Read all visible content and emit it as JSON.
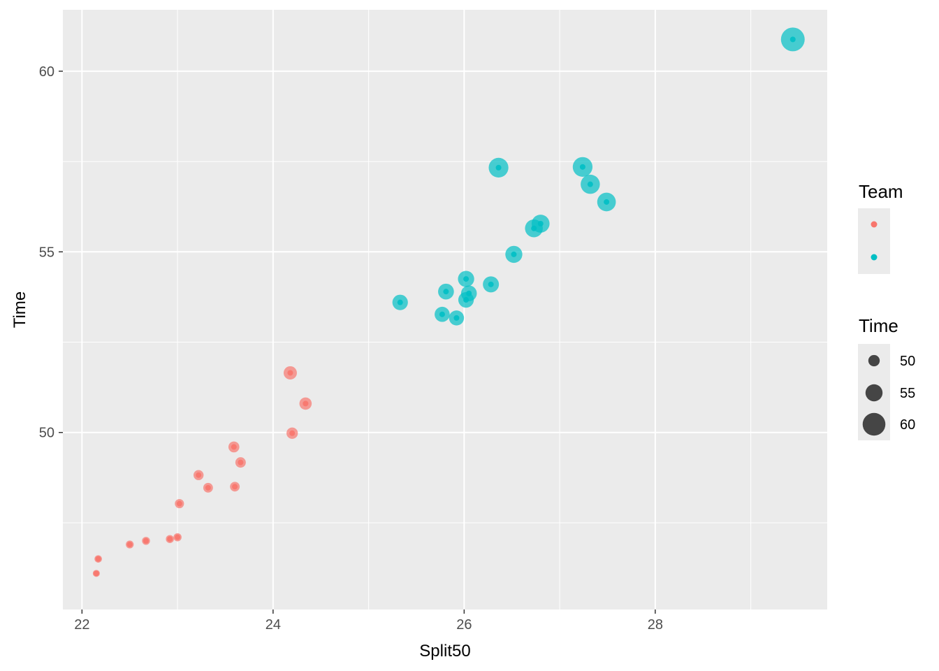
{
  "chart_data": {
    "type": "scatter",
    "xlabel": "Split50",
    "ylabel": "Time",
    "xlim": [
      21.8,
      29.8
    ],
    "ylim": [
      45.1,
      61.7
    ],
    "x_ticks": [
      22,
      24,
      26,
      28
    ],
    "y_ticks": [
      50,
      55,
      60
    ],
    "x_tick_labels": [
      "22",
      "24",
      "26",
      "28"
    ],
    "y_tick_labels": [
      "50",
      "55",
      "60"
    ],
    "grid": true,
    "legend_position": "right",
    "series": [
      {
        "color": "#F8766D",
        "points": [
          {
            "x": 22.15,
            "y": 46.1
          },
          {
            "x": 22.17,
            "y": 46.5
          },
          {
            "x": 22.5,
            "y": 46.9
          },
          {
            "x": 22.67,
            "y": 47.0
          },
          {
            "x": 22.92,
            "y": 47.05
          },
          {
            "x": 23.0,
            "y": 47.1
          },
          {
            "x": 23.02,
            "y": 48.03
          },
          {
            "x": 23.22,
            "y": 48.82
          },
          {
            "x": 23.32,
            "y": 48.47
          },
          {
            "x": 23.6,
            "y": 48.5
          },
          {
            "x": 23.59,
            "y": 49.6
          },
          {
            "x": 23.66,
            "y": 49.17
          },
          {
            "x": 24.2,
            "y": 49.98
          },
          {
            "x": 24.18,
            "y": 51.65
          },
          {
            "x": 24.34,
            "y": 50.8
          }
        ]
      },
      {
        "color": "#00BFC4",
        "points": [
          {
            "x": 25.33,
            "y": 53.6
          },
          {
            "x": 25.77,
            "y": 53.27
          },
          {
            "x": 25.81,
            "y": 53.9
          },
          {
            "x": 25.92,
            "y": 53.17
          },
          {
            "x": 26.02,
            "y": 54.25
          },
          {
            "x": 26.02,
            "y": 53.67
          },
          {
            "x": 26.05,
            "y": 53.85
          },
          {
            "x": 26.28,
            "y": 54.1
          },
          {
            "x": 26.52,
            "y": 54.93
          },
          {
            "x": 26.36,
            "y": 57.33
          },
          {
            "x": 26.73,
            "y": 55.65
          },
          {
            "x": 26.8,
            "y": 55.78
          },
          {
            "x": 27.24,
            "y": 57.35
          },
          {
            "x": 27.32,
            "y": 56.87
          },
          {
            "x": 27.49,
            "y": 56.38
          },
          {
            "x": 29.44,
            "y": 60.88
          }
        ]
      }
    ],
    "legends": [
      {
        "title": "Team",
        "keys": [
          {
            "color": "#F8766D",
            "label": ""
          },
          {
            "color": "#00BFC4",
            "label": ""
          }
        ]
      },
      {
        "title": "Time",
        "keys": [
          {
            "value": 50,
            "label": "50"
          },
          {
            "value": 55,
            "label": "55"
          },
          {
            "value": 60,
            "label": "60"
          }
        ]
      }
    ]
  }
}
